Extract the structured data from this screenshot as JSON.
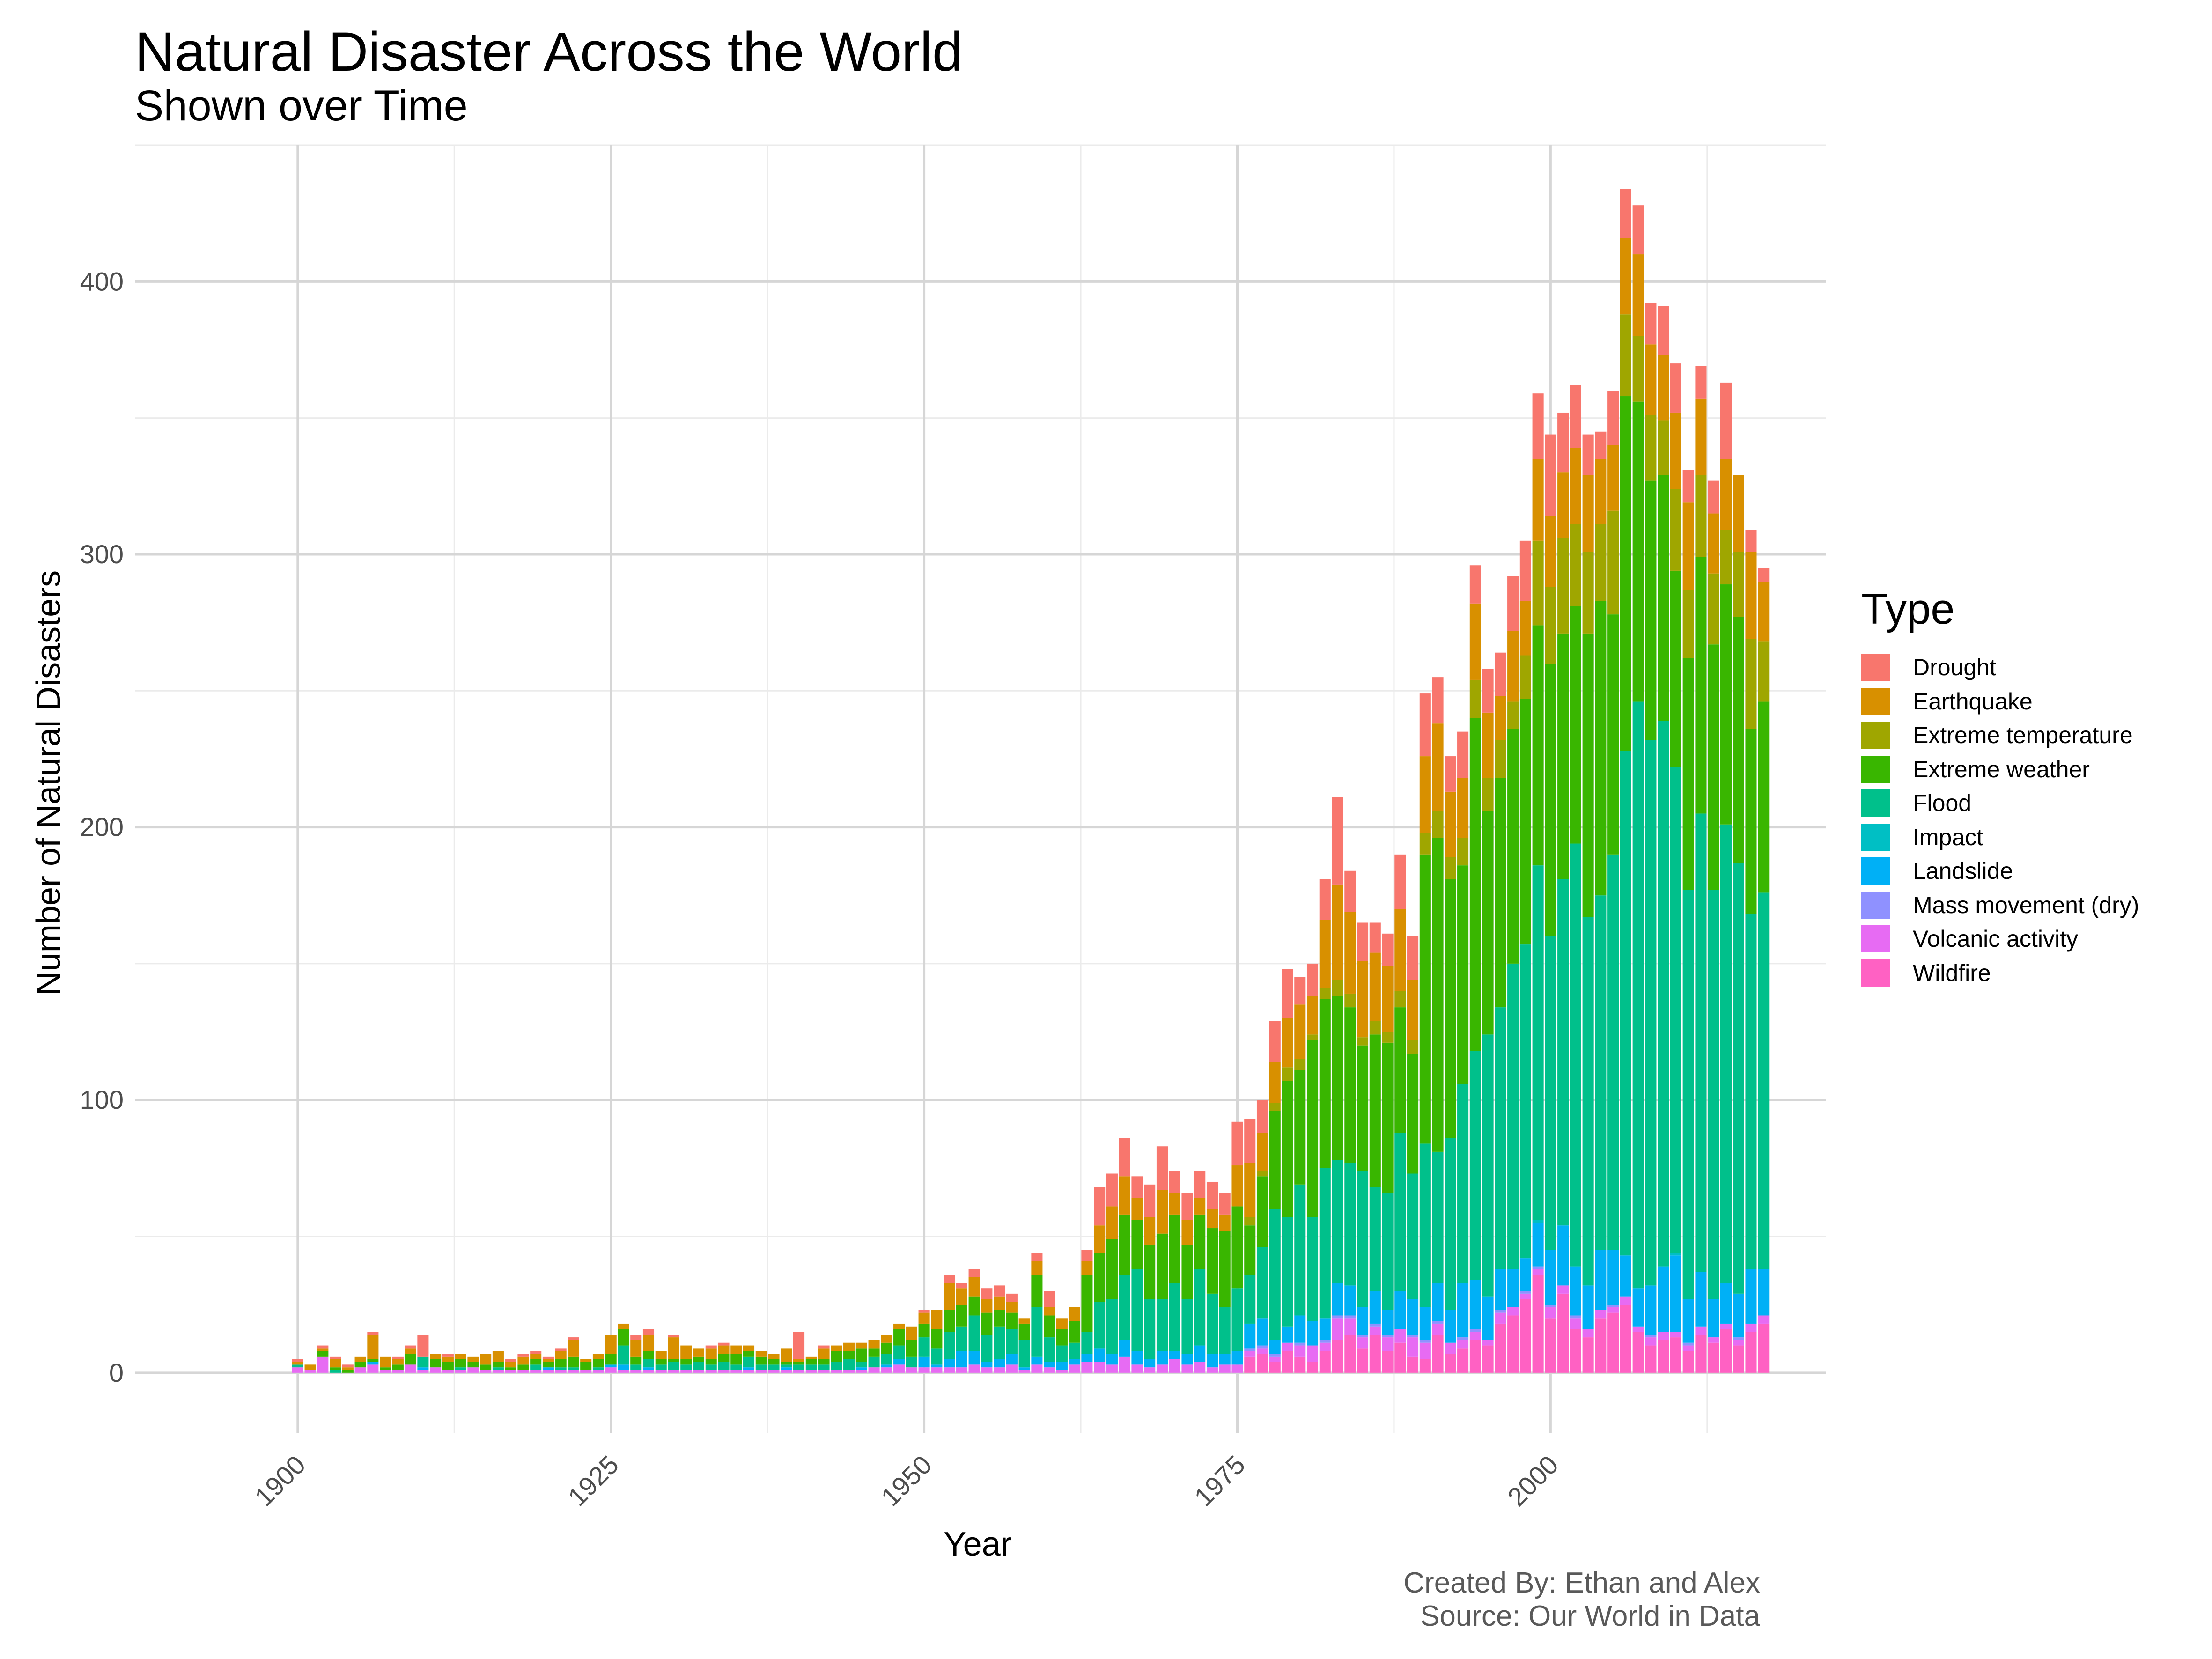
{
  "chart_data": {
    "type": "bar",
    "stacked": true,
    "title": "Natural Disaster Across the World",
    "subtitle": "Shown over Time",
    "xlabel": "Year",
    "ylabel": "Number of Natural Disasters",
    "legend_title": "Type",
    "caption_lines": [
      "Created By: Ethan and Alex",
      "Source: Our World in Data"
    ],
    "xlim": [
      1887,
      2022
    ],
    "ylim": [
      -22,
      450
    ],
    "x_ticks": [
      1900,
      1925,
      1950,
      1975,
      2000
    ],
    "y_ticks": [
      0,
      100,
      200,
      300,
      400
    ],
    "grid": true,
    "legend_position": "right",
    "series": [
      {
        "name": "Wildfire",
        "color": "#FF61C3",
        "values": [
          0,
          0,
          0,
          0,
          0,
          0,
          0,
          0,
          0,
          0,
          0,
          0,
          0,
          0,
          0,
          0,
          0,
          0,
          0,
          0,
          0,
          0,
          0,
          0,
          0,
          0,
          0,
          0,
          0,
          0,
          0,
          0,
          0,
          0,
          0,
          0,
          0,
          0,
          0,
          0,
          0,
          0,
          0,
          0,
          0,
          0,
          0,
          0,
          0,
          0,
          0,
          0,
          0,
          0,
          0,
          0,
          0,
          0,
          0,
          0,
          0,
          0,
          0,
          0,
          0,
          0,
          0,
          0,
          0,
          0,
          0,
          0,
          0,
          0,
          0,
          0,
          6,
          7,
          4,
          8,
          6,
          4,
          8,
          12,
          14,
          9,
          14,
          8,
          11,
          6,
          5,
          14,
          7,
          9,
          12,
          10,
          18,
          21,
          27,
          36,
          20,
          29,
          16,
          13,
          20,
          22,
          25,
          15,
          10,
          12,
          13,
          8,
          14,
          11,
          16,
          10,
          15,
          18
        ]
      },
      {
        "name": "Volcanic activity",
        "color": "#E76BF3",
        "values": [
          2,
          1,
          6,
          0,
          0,
          2,
          3,
          1,
          1,
          3,
          1,
          2,
          1,
          1,
          2,
          1,
          1,
          1,
          1,
          1,
          1,
          1,
          1,
          1,
          1,
          2,
          1,
          1,
          1,
          1,
          1,
          1,
          1,
          1,
          1,
          1,
          1,
          1,
          1,
          1,
          1,
          1,
          1,
          1,
          1,
          1,
          2,
          2,
          3,
          2,
          2,
          2,
          2,
          2,
          3,
          2,
          2,
          3,
          1,
          3,
          2,
          1,
          3,
          4,
          4,
          3,
          6,
          3,
          2,
          3,
          5,
          3,
          4,
          2,
          3,
          3,
          2,
          2,
          2,
          3,
          4,
          6,
          3,
          8,
          6,
          4,
          3,
          5,
          5,
          7,
          6,
          4,
          4,
          3,
          3,
          2,
          4,
          3,
          2,
          2,
          4,
          3,
          4,
          3,
          3,
          2,
          3,
          2,
          3,
          3,
          2,
          2,
          3,
          2,
          2,
          2,
          3,
          3,
          2,
          3
        ]
      },
      {
        "name": "Mass movement (dry)",
        "color": "#8F91FF",
        "values": [
          0,
          0,
          0,
          0,
          0,
          0,
          0,
          0,
          0,
          0,
          0,
          0,
          0,
          0,
          0,
          0,
          0,
          0,
          0,
          0,
          0,
          0,
          0,
          0,
          0,
          0,
          0,
          0,
          0,
          0,
          0,
          0,
          0,
          0,
          0,
          0,
          0,
          0,
          0,
          0,
          0,
          0,
          0,
          0,
          0,
          0,
          0,
          0,
          0,
          0,
          0,
          0,
          0,
          0,
          0,
          0,
          0,
          0,
          0,
          0,
          0,
          0,
          0,
          0,
          0,
          0,
          0,
          0,
          0,
          0,
          0,
          0,
          0,
          0,
          0,
          0,
          1,
          1,
          1,
          0,
          1,
          0,
          1,
          1,
          1,
          1,
          1,
          1,
          0,
          1,
          1,
          1,
          0,
          1,
          1,
          0,
          1,
          0,
          1,
          1,
          1,
          0,
          1,
          0,
          0,
          1,
          0,
          0,
          1,
          0,
          0,
          1,
          0,
          0,
          0,
          1,
          0,
          0,
          0,
          0
        ]
      },
      {
        "name": "Landslide",
        "color": "#00B0F6",
        "values": [
          0,
          0,
          0,
          0,
          0,
          0,
          1,
          0,
          0,
          0,
          1,
          0,
          0,
          0,
          0,
          0,
          0,
          0,
          0,
          0,
          1,
          0,
          0,
          0,
          0,
          1,
          2,
          0,
          1,
          0,
          0,
          0,
          0,
          0,
          0,
          0,
          1,
          0,
          0,
          1,
          0,
          0,
          0,
          0,
          0,
          1,
          0,
          1,
          2,
          0,
          4,
          1,
          3,
          6,
          5,
          2,
          3,
          4,
          1,
          3,
          2,
          3,
          2,
          3,
          5,
          4,
          6,
          5,
          3,
          5,
          3,
          4,
          6,
          5,
          4,
          5,
          9,
          10,
          5,
          6,
          10,
          9,
          8,
          12,
          11,
          10,
          12,
          9,
          14,
          13,
          12,
          14,
          12,
          20,
          18,
          16,
          15,
          14,
          12,
          16,
          20,
          22,
          18,
          16,
          22,
          20,
          15,
          14,
          18,
          24,
          28,
          16,
          20,
          14,
          15,
          16,
          20,
          17,
          20,
          12
        ]
      },
      {
        "name": "Impact",
        "color": "#00BFC4",
        "values": [
          0,
          0,
          0,
          0,
          0,
          0,
          0,
          0,
          0,
          0,
          0,
          0,
          0,
          0,
          0,
          0,
          0,
          0,
          0,
          0,
          0,
          0,
          0,
          0,
          0,
          0,
          0,
          0,
          0,
          0,
          0,
          0,
          0,
          0,
          0,
          0,
          0,
          0,
          0,
          0,
          0,
          0,
          0,
          0,
          0,
          0,
          0,
          0,
          0,
          0,
          0,
          0,
          0,
          0,
          0,
          0,
          0,
          0,
          0,
          0,
          0,
          0,
          0,
          0,
          0,
          0,
          0,
          0,
          0,
          0,
          0,
          0,
          0,
          0,
          0,
          0,
          0,
          0,
          0,
          0,
          0,
          0,
          0,
          0,
          0,
          0,
          0,
          0,
          0,
          0,
          0,
          0,
          0,
          0,
          0,
          0,
          0,
          0,
          0,
          1,
          0,
          0,
          0,
          0,
          0,
          0,
          0,
          0,
          0,
          0,
          1,
          0,
          0,
          0,
          0,
          0,
          0,
          0,
          0,
          0
        ]
      },
      {
        "name": "Flood",
        "color": "#00C08B",
        "values": [
          1,
          0,
          0,
          1,
          0,
          0,
          0,
          0,
          0,
          0,
          4,
          0,
          0,
          1,
          0,
          0,
          1,
          0,
          0,
          2,
          0,
          1,
          1,
          0,
          1,
          0,
          7,
          2,
          3,
          2,
          3,
          2,
          3,
          2,
          3,
          2,
          4,
          2,
          2,
          1,
          2,
          2,
          2,
          3,
          4,
          2,
          4,
          4,
          5,
          4,
          7,
          6,
          10,
          9,
          13,
          10,
          12,
          9,
          10,
          18,
          9,
          6,
          6,
          8,
          17,
          20,
          24,
          30,
          22,
          19,
          25,
          20,
          28,
          22,
          17,
          23,
          18,
          26,
          48,
          40,
          48,
          38,
          55,
          45,
          45,
          50,
          38,
          43,
          58,
          46,
          60,
          48,
          63,
          73,
          84,
          96,
          96,
          112,
          115,
          130,
          115,
          127,
          155,
          135,
          130,
          145,
          185,
          215,
          200,
          200,
          178,
          150,
          168,
          150,
          168,
          158,
          130,
          138,
          140,
          138
        ]
      },
      {
        "name": "Extreme weather",
        "color": "#39B600",
        "values": [
          0,
          0,
          2,
          1,
          1,
          2,
          1,
          1,
          2,
          4,
          0,
          3,
          3,
          3,
          2,
          2,
          2,
          1,
          2,
          2,
          2,
          3,
          4,
          3,
          3,
          4,
          6,
          3,
          3,
          2,
          1,
          2,
          2,
          2,
          3,
          4,
          2,
          3,
          2,
          1,
          1,
          2,
          2,
          4,
          3,
          5,
          3,
          4,
          6,
          6,
          5,
          7,
          8,
          8,
          7,
          8,
          6,
          6,
          6,
          12,
          8,
          6,
          8,
          21,
          18,
          22,
          22,
          18,
          20,
          24,
          25,
          20,
          20,
          24,
          28,
          30,
          18,
          26,
          36,
          50,
          42,
          65,
          62,
          60,
          57,
          46,
          56,
          55,
          46,
          44,
          106,
          115,
          95,
          80,
          122,
          82,
          84,
          86,
          90,
          88,
          100,
          90,
          87,
          104,
          108,
          88,
          130,
          110,
          95,
          90,
          72,
          85,
          94,
          90,
          88,
          90,
          68,
          70,
          63,
          87
        ]
      },
      {
        "name": "Extreme temperature",
        "color": "#9FA600",
        "values": [
          0,
          0,
          0,
          0,
          0,
          0,
          0,
          0,
          0,
          0,
          0,
          0,
          0,
          0,
          0,
          0,
          0,
          0,
          0,
          0,
          0,
          0,
          0,
          0,
          0,
          0,
          0,
          0,
          0,
          0,
          0,
          0,
          0,
          0,
          0,
          0,
          0,
          0,
          0,
          0,
          0,
          0,
          0,
          0,
          0,
          0,
          0,
          0,
          0,
          0,
          0,
          0,
          0,
          0,
          0,
          0,
          0,
          0,
          0,
          0,
          0,
          0,
          0,
          0,
          0,
          0,
          0,
          0,
          0,
          0,
          0,
          0,
          0,
          0,
          0,
          0,
          3,
          2,
          3,
          5,
          4,
          2,
          4,
          6,
          5,
          3,
          5,
          4,
          6,
          5,
          8,
          10,
          8,
          10,
          14,
          12,
          14,
          10,
          16,
          31,
          28,
          35,
          30,
          30,
          28,
          38,
          30,
          24,
          24,
          20,
          30,
          25,
          30,
          26,
          20,
          24,
          33,
          22,
          10,
          11
        ]
      },
      {
        "name": "Earthquake",
        "color": "#D89000",
        "values": [
          1,
          2,
          1,
          3,
          1,
          2,
          9,
          4,
          2,
          2,
          0,
          2,
          2,
          2,
          2,
          4,
          4,
          2,
          3,
          2,
          1,
          3,
          6,
          1,
          2,
          7,
          2,
          6,
          6,
          3,
          8,
          5,
          3,
          4,
          3,
          3,
          2,
          2,
          2,
          5,
          1,
          1,
          4,
          2,
          3,
          2,
          3,
          3,
          2,
          5,
          4,
          7,
          10,
          6,
          7,
          5,
          5,
          4,
          2,
          5,
          3,
          4,
          5,
          5,
          10,
          12,
          14,
          8,
          10,
          16,
          8,
          9,
          6,
          7,
          6,
          15,
          20,
          14,
          15,
          18,
          20,
          14,
          25,
          35,
          30,
          28,
          25,
          24,
          30,
          22,
          28,
          32,
          24,
          22,
          28,
          24,
          16,
          26,
          20,
          30,
          26,
          24,
          28,
          28,
          24,
          24,
          28,
          30,
          26,
          24,
          28,
          32,
          28,
          22,
          26,
          28,
          32,
          22,
          18,
          20
        ]
      },
      {
        "name": "Drought",
        "color": "#F8766D",
        "values": [
          1,
          0,
          1,
          1,
          1,
          0,
          1,
          0,
          1,
          1,
          8,
          0,
          1,
          0,
          0,
          0,
          0,
          1,
          1,
          1,
          1,
          1,
          1,
          0,
          0,
          0,
          0,
          2,
          2,
          0,
          1,
          0,
          0,
          1,
          1,
          0,
          0,
          0,
          0,
          0,
          10,
          0,
          1,
          0,
          0,
          0,
          0,
          0,
          0,
          0,
          1,
          0,
          3,
          2,
          3,
          4,
          4,
          3,
          0,
          3,
          6,
          0,
          0,
          4,
          14,
          12,
          14,
          8,
          12,
          16,
          8,
          10,
          10,
          10,
          8,
          16,
          16,
          12,
          15,
          18,
          10,
          12,
          15,
          32,
          15,
          14,
          11,
          12,
          20,
          16,
          23,
          17,
          13,
          17,
          14,
          16,
          16,
          20,
          22,
          24,
          30,
          22,
          23,
          15,
          10,
          20,
          18,
          18,
          15,
          18,
          18,
          12,
          12,
          12,
          28,
          0,
          8,
          5,
          5,
          11
        ]
      }
    ]
  }
}
